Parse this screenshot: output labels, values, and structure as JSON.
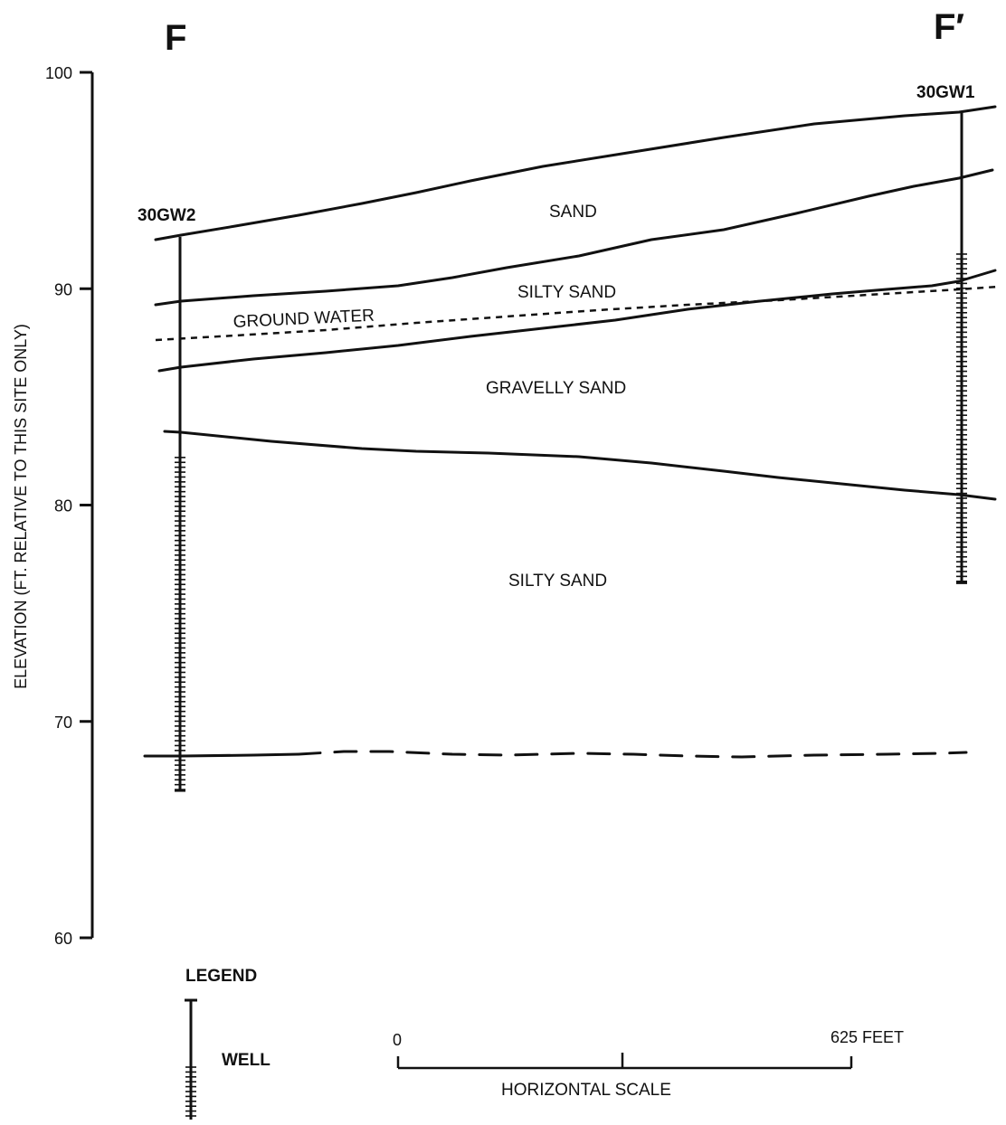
{
  "section": {
    "label_left": "F",
    "label_right": "F′"
  },
  "y_axis": {
    "title": "ELEVATION (FT. RELATIVE TO THIS SITE ONLY)",
    "ticks": [
      {
        "value": 100,
        "label": "100"
      },
      {
        "value": 90,
        "label": "90"
      },
      {
        "value": 80,
        "label": "80"
      },
      {
        "value": 70,
        "label": "70"
      },
      {
        "value": 60,
        "label": "60"
      }
    ]
  },
  "wells": [
    {
      "id": "30GW2",
      "label": "30GW2",
      "top_elevation": 92.4,
      "screen_top": 82.2,
      "bottom": 66.8
    },
    {
      "id": "30GW1",
      "label": "30GW1",
      "top_elevation": 98.2,
      "screen_top": 91.6,
      "bottom": 76.4
    }
  ],
  "units": [
    {
      "label": "SAND"
    },
    {
      "label": "SILTY SAND"
    },
    {
      "label": "GROUND WATER"
    },
    {
      "label": "GRAVELLY SAND"
    },
    {
      "label": "SILTY SAND"
    }
  ],
  "legend": {
    "title": "LEGEND",
    "well_label": "WELL"
  },
  "scale": {
    "zero_label": "0",
    "end_label": "625 FEET",
    "title": "HORIZONTAL SCALE"
  }
}
